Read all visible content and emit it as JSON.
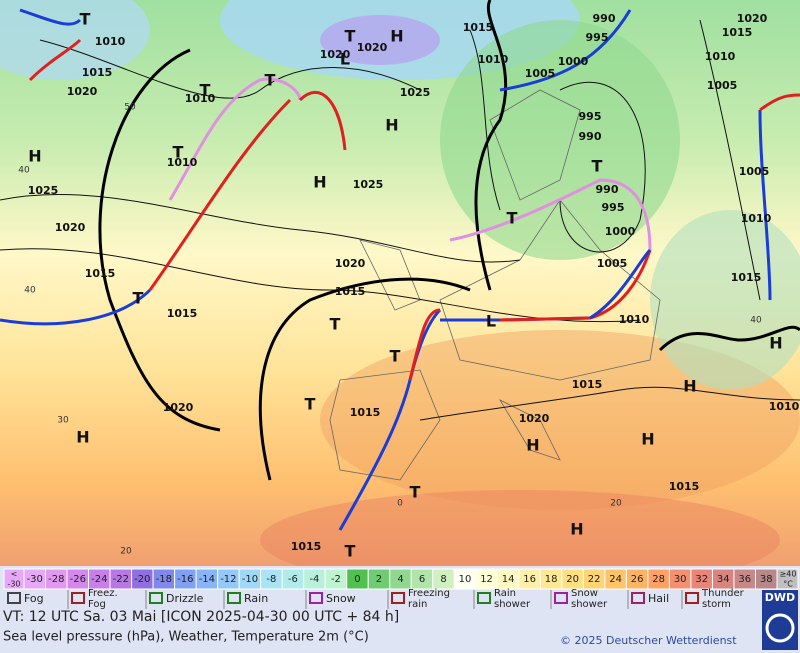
{
  "map": {
    "isobar_labels": [
      "1010",
      "1015",
      "1020",
      "1010",
      "1010",
      "1025",
      "1020",
      "1015",
      "1015",
      "1020",
      "1020",
      "1020",
      "1025",
      "1025",
      "1020",
      "1015",
      "1015",
      "1015",
      "1010",
      "1005",
      "1000",
      "995",
      "990",
      "995",
      "990",
      "990",
      "995",
      "1000",
      "1005",
      "1010",
      "1015",
      "1020",
      "1015",
      "1015",
      "1020",
      "1015",
      "1010",
      "1005",
      "1005",
      "1010",
      "1015",
      "1010"
    ],
    "latitude_labels": [
      "50",
      "40",
      "40",
      "30",
      "20",
      "0",
      "20",
      "40"
    ],
    "centers": [
      "H",
      "H",
      "H",
      "H",
      "H",
      "H",
      "H",
      "H",
      "H",
      "L",
      "H",
      "L"
    ],
    "thunder_labels": [
      "T",
      "T",
      "T",
      "T",
      "T",
      "T",
      "T",
      "T",
      "T",
      "T",
      "T",
      "T",
      "T"
    ]
  },
  "temperature_scale": {
    "below": [
      "<",
      "-30"
    ],
    "values": [
      -30,
      -28,
      -26,
      -24,
      -22,
      -20,
      -18,
      -16,
      -14,
      -12,
      -10,
      -8,
      -6,
      -4,
      -2,
      0,
      2,
      4,
      6,
      8,
      10,
      12,
      14,
      16,
      18,
      20,
      22,
      24,
      26,
      28,
      30,
      32,
      34,
      36,
      38
    ],
    "colors": [
      "#e8a8f8",
      "#e098f0",
      "#d488ec",
      "#c880e8",
      "#b878e4",
      "#9070e0",
      "#8088ec",
      "#80a0f4",
      "#88b4f8",
      "#94c8f8",
      "#a0d8f8",
      "#a8e4f4",
      "#b0ecec",
      "#b8f0dc",
      "#c0f4d0",
      "#50c050",
      "#70cc70",
      "#90d890",
      "#b0e4a8",
      "#d0f0c0",
      "#fffff4",
      "#ffffd8",
      "#fff8c0",
      "#fff0a8",
      "#ffe894",
      "#ffe080",
      "#ffd474",
      "#ffc468",
      "#ffb464",
      "#ffa064",
      "#f49070",
      "#e88478",
      "#d88480",
      "#c88888",
      "#b88888"
    ],
    "above": [
      "≥40",
      "°C"
    ]
  },
  "legend": {
    "items": [
      [
        "Fog"
      ],
      [
        "Freez.",
        "Fog"
      ],
      [
        "Drizzle"
      ],
      [
        "Rain"
      ],
      [
        "Snow"
      ],
      [
        "Freezing",
        "rain"
      ],
      [
        "Rain",
        "shower"
      ],
      [
        "Snow",
        "shower"
      ],
      [
        "Hail"
      ],
      [
        "Thunder",
        "storm"
      ]
    ]
  },
  "footer": {
    "valid_time": "VT: 12 UTC Sa.  03 Mai [ICON 2025-04-30  00 UTC + 84 h]",
    "description": "Sea level pressure (hPa), Weather, Temperature 2m (°C)",
    "copyright": "© 2025 Deutscher Wetterdienst",
    "logo": "DWD"
  }
}
